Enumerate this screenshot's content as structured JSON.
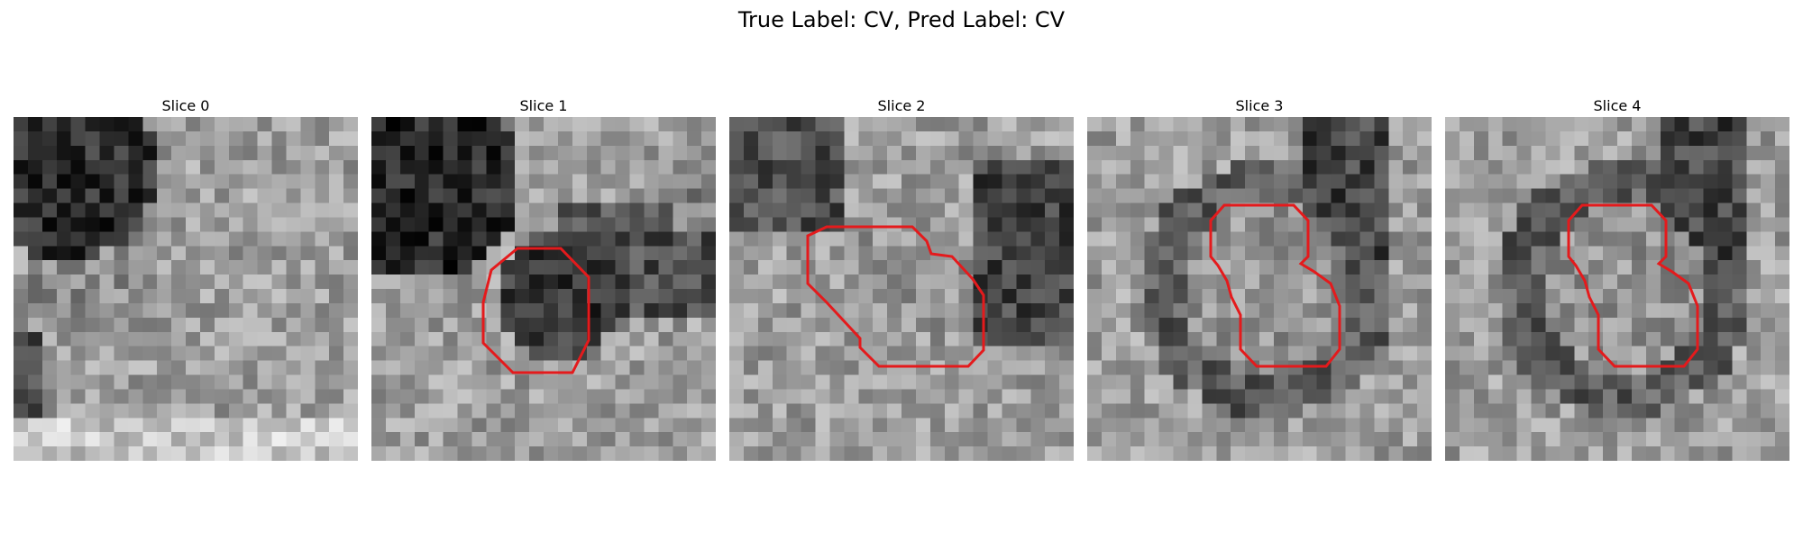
{
  "figure": {
    "title": "True Label: CV, Pred Label: CV",
    "outline_color": "#e41a1c",
    "colormap": "gray",
    "grid_size": 24
  },
  "panels": [
    {
      "title": "Slice 0",
      "has_outline": false
    },
    {
      "title": "Slice 1",
      "has_outline": true
    },
    {
      "title": "Slice 2",
      "has_outline": true
    },
    {
      "title": "Slice 3",
      "has_outline": true
    },
    {
      "title": "Slice 4",
      "has_outline": true
    }
  ]
}
